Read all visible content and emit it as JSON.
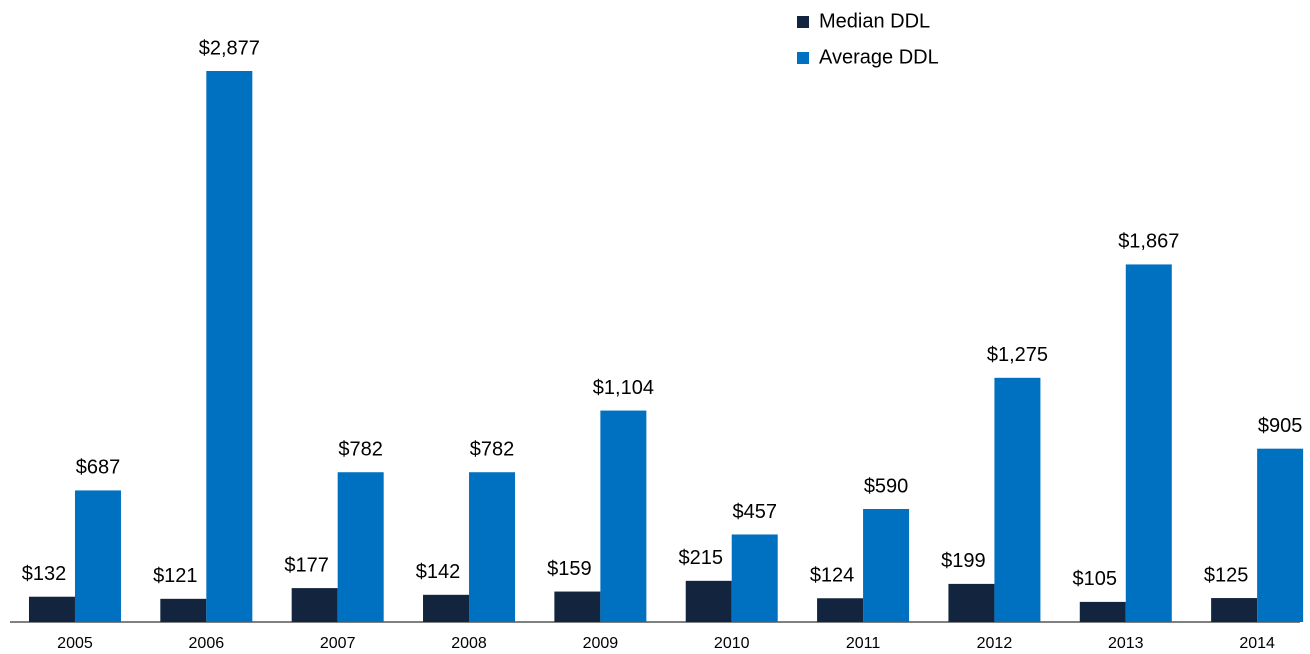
{
  "chart_data": {
    "type": "bar",
    "categories": [
      "2005",
      "2006",
      "2007",
      "2008",
      "2009",
      "2010",
      "2011",
      "2012",
      "2013",
      "2014"
    ],
    "series": [
      {
        "name": "Median DDL",
        "color": "#13243f",
        "values": [
          132,
          121,
          177,
          142,
          159,
          215,
          124,
          199,
          105,
          125
        ],
        "value_labels": [
          "$132",
          "$121",
          "$177",
          "$142",
          "$159",
          "$215",
          "$124",
          "$199",
          "$105",
          "$125"
        ]
      },
      {
        "name": "Average DDL",
        "color": "#0070c0",
        "values": [
          687,
          2877,
          782,
          782,
          1104,
          457,
          590,
          1275,
          1867,
          905
        ],
        "value_labels": [
          "$687",
          "$2,877",
          "$782",
          "$782",
          "$1,104",
          "$457",
          "$590",
          "$1,275",
          "$1,867",
          "$905"
        ]
      }
    ],
    "legend": "top-right"
  }
}
